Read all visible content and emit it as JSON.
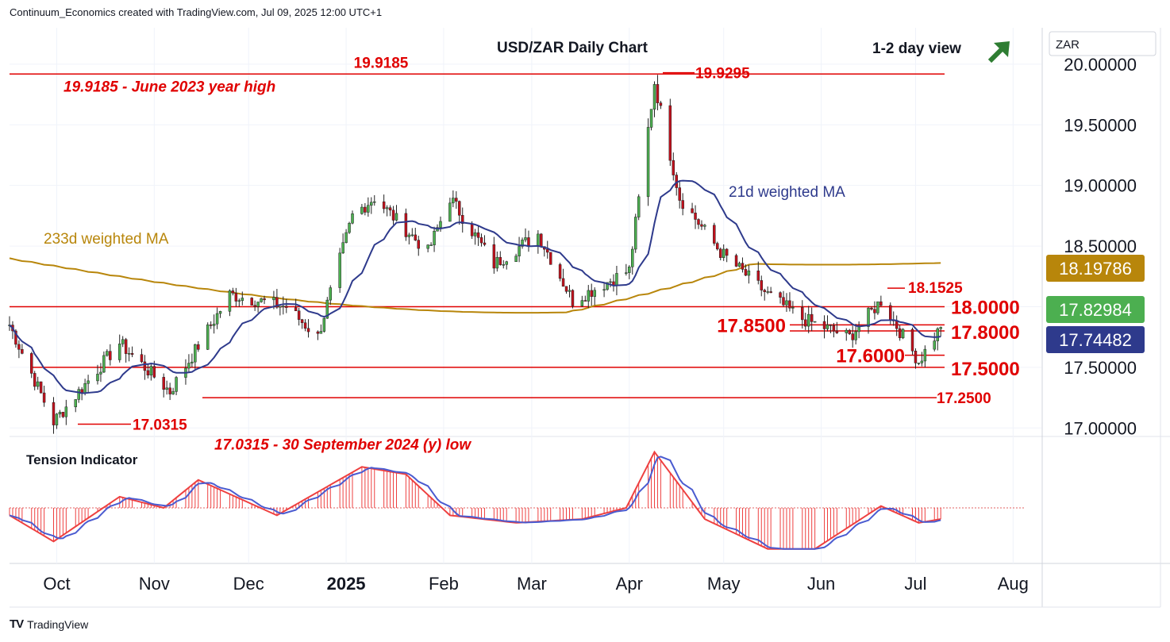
{
  "header": "Continuum_Economics created with TradingView.com, Jul 09, 2025 12:00 UTC+1",
  "footer": "TradingView",
  "colors": {
    "up": "#4caf50",
    "down": "#c2101c",
    "ma21": "#2e3a8c",
    "ma233": "#b8860b",
    "level": "#e00000",
    "tension_blue": "#4a5bd0",
    "tension_red": "#ee4040"
  },
  "chart_data": [
    {
      "type": "candlestick",
      "title": "USD/ZAR Daily Chart",
      "view_label": "1-2 day view",
      "view_icon": "arrow-up-right-icon",
      "currency": "ZAR",
      "x_ticks": [
        "Oct",
        "Nov",
        "Dec",
        "2025",
        "Feb",
        "Mar",
        "Apr",
        "May",
        "Jun",
        "Jul",
        "Aug"
      ],
      "y_ticks": [
        "17.00000",
        "17.50000",
        "18.00000",
        "18.50000",
        "19.00000",
        "19.50000",
        "20.00000"
      ],
      "ylim": [
        16.93,
        20.3
      ],
      "levels": [
        {
          "name": "19.9185",
          "value": 19.9185
        },
        {
          "name": "17.0315",
          "value": 17.0315
        },
        {
          "name": "18.0000",
          "value": 18.0
        },
        {
          "name": "17.8500",
          "value": 17.85
        },
        {
          "name": "17.8000",
          "value": 17.8
        },
        {
          "name": "17.6000",
          "value": 17.6
        },
        {
          "name": "17.5000",
          "value": 17.5
        },
        {
          "name": "17.2500",
          "value": 17.25
        },
        {
          "name": "18.1525",
          "value": 18.1525
        },
        {
          "name": "19.9295",
          "value": 19.9295
        }
      ],
      "annotations": [
        "19.9185 - June 2023 year high",
        "17.0315 - 30 September 2024 (y) low"
      ],
      "ma_labels": {
        "ma21": "21d weighted MA",
        "ma233": "233d weighted MA"
      },
      "price_tags": {
        "ma233": "18.19786",
        "last": "17.82984",
        "ma21": "17.74482"
      },
      "anchors": [
        {
          "x": "2024-09-16",
          "y": 17.85
        },
        {
          "x": "2024-09-30",
          "y": 17.05
        },
        {
          "x": "2024-10-21",
          "y": 17.7
        },
        {
          "x": "2024-11-06",
          "y": 17.3
        },
        {
          "x": "2024-11-25",
          "y": 18.1
        },
        {
          "x": "2024-12-13",
          "y": 18.0
        },
        {
          "x": "2024-12-23",
          "y": 17.75
        },
        {
          "x": "2025-01-03",
          "y": 18.75
        },
        {
          "x": "2025-01-10",
          "y": 18.9
        },
        {
          "x": "2025-01-27",
          "y": 18.45
        },
        {
          "x": "2025-02-03",
          "y": 18.9
        },
        {
          "x": "2025-02-17",
          "y": 18.35
        },
        {
          "x": "2025-03-03",
          "y": 18.6
        },
        {
          "x": "2025-03-14",
          "y": 18.05
        },
        {
          "x": "2025-04-01",
          "y": 18.3
        },
        {
          "x": "2025-04-09",
          "y": 19.85
        },
        {
          "x": "2025-04-17",
          "y": 18.9
        },
        {
          "x": "2025-04-30",
          "y": 18.45
        },
        {
          "x": "2025-05-15",
          "y": 18.1
        },
        {
          "x": "2025-05-26",
          "y": 17.9
        },
        {
          "x": "2025-06-10",
          "y": 17.75
        },
        {
          "x": "2025-06-20",
          "y": 18.05
        },
        {
          "x": "2025-07-02",
          "y": 17.55
        },
        {
          "x": "2025-07-09",
          "y": 17.83
        }
      ]
    },
    {
      "type": "oscillator",
      "title": "Tension Indicator",
      "anchors": [
        {
          "x": "2024-09-16",
          "y": -0.2
        },
        {
          "x": "2024-09-30",
          "y": -0.9
        },
        {
          "x": "2024-10-21",
          "y": 0.3
        },
        {
          "x": "2024-11-04",
          "y": 0.0
        },
        {
          "x": "2024-11-15",
          "y": 0.75
        },
        {
          "x": "2024-12-10",
          "y": -0.2
        },
        {
          "x": "2025-01-06",
          "y": 1.1
        },
        {
          "x": "2025-01-20",
          "y": 0.9
        },
        {
          "x": "2025-02-03",
          "y": -0.2
        },
        {
          "x": "2025-02-24",
          "y": -0.4
        },
        {
          "x": "2025-03-17",
          "y": -0.3
        },
        {
          "x": "2025-03-31",
          "y": 0.0
        },
        {
          "x": "2025-04-09",
          "y": 1.5
        },
        {
          "x": "2025-04-25",
          "y": -0.3
        },
        {
          "x": "2025-05-15",
          "y": -1.1
        },
        {
          "x": "2025-05-30",
          "y": -1.1
        },
        {
          "x": "2025-06-20",
          "y": 0.05
        },
        {
          "x": "2025-07-02",
          "y": -0.4
        },
        {
          "x": "2025-07-09",
          "y": -0.3
        }
      ]
    }
  ]
}
